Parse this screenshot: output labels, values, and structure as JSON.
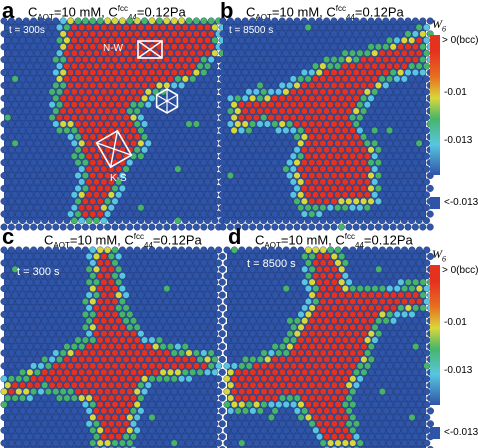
{
  "panels": {
    "a": {
      "letter": "a",
      "caption_prefix": "C",
      "caption_sub": "AOT",
      "caption_mid": "=10 mM, C",
      "caption_sup": "fcc",
      "caption_sub2": "44",
      "caption_end": "=0.12Pa",
      "time": "t = 300s",
      "labels": {
        "nw": "N-W",
        "ks": "K-S"
      }
    },
    "b": {
      "letter": "b",
      "caption_prefix": "C",
      "caption_sub": "AOT",
      "caption_mid": "=10 mM, C",
      "caption_sup": "fcc",
      "caption_sub2": "44",
      "caption_end": "=0.12Pa",
      "time": "t = 8500 s"
    },
    "c": {
      "letter": "c",
      "caption_prefix": "C",
      "caption_sub": "AOT",
      "caption_mid": "=10 mM, C",
      "caption_sup": "fcc",
      "caption_sub2": "44",
      "caption_end": "=0.12Pa",
      "time": "t = 300 s"
    },
    "d": {
      "letter": "d",
      "caption_prefix": "C",
      "caption_sub": "AOT",
      "caption_mid": "=10 mM, C",
      "caption_sup": "fcc",
      "caption_sub2": "44",
      "caption_end": "=0.12Pa",
      "time": "t = 8500 s"
    }
  },
  "legend_top": {
    "title": "W",
    "title_sub": "6",
    "labels": [
      "> 0(bcc)",
      "-0.01",
      "-0.013",
      "<-0.013"
    ]
  },
  "legend_bottom": {
    "title": "W",
    "title_sub": "6",
    "labels": [
      "> 0(bcc)",
      "-0.01",
      "-0.013",
      "<-0.013"
    ]
  },
  "colors": {
    "blue": "#2f55a8",
    "red": "#e5321f",
    "green": "#46b56a",
    "cyan": "#58c6e0",
    "yellow": "#d8d83a"
  }
}
